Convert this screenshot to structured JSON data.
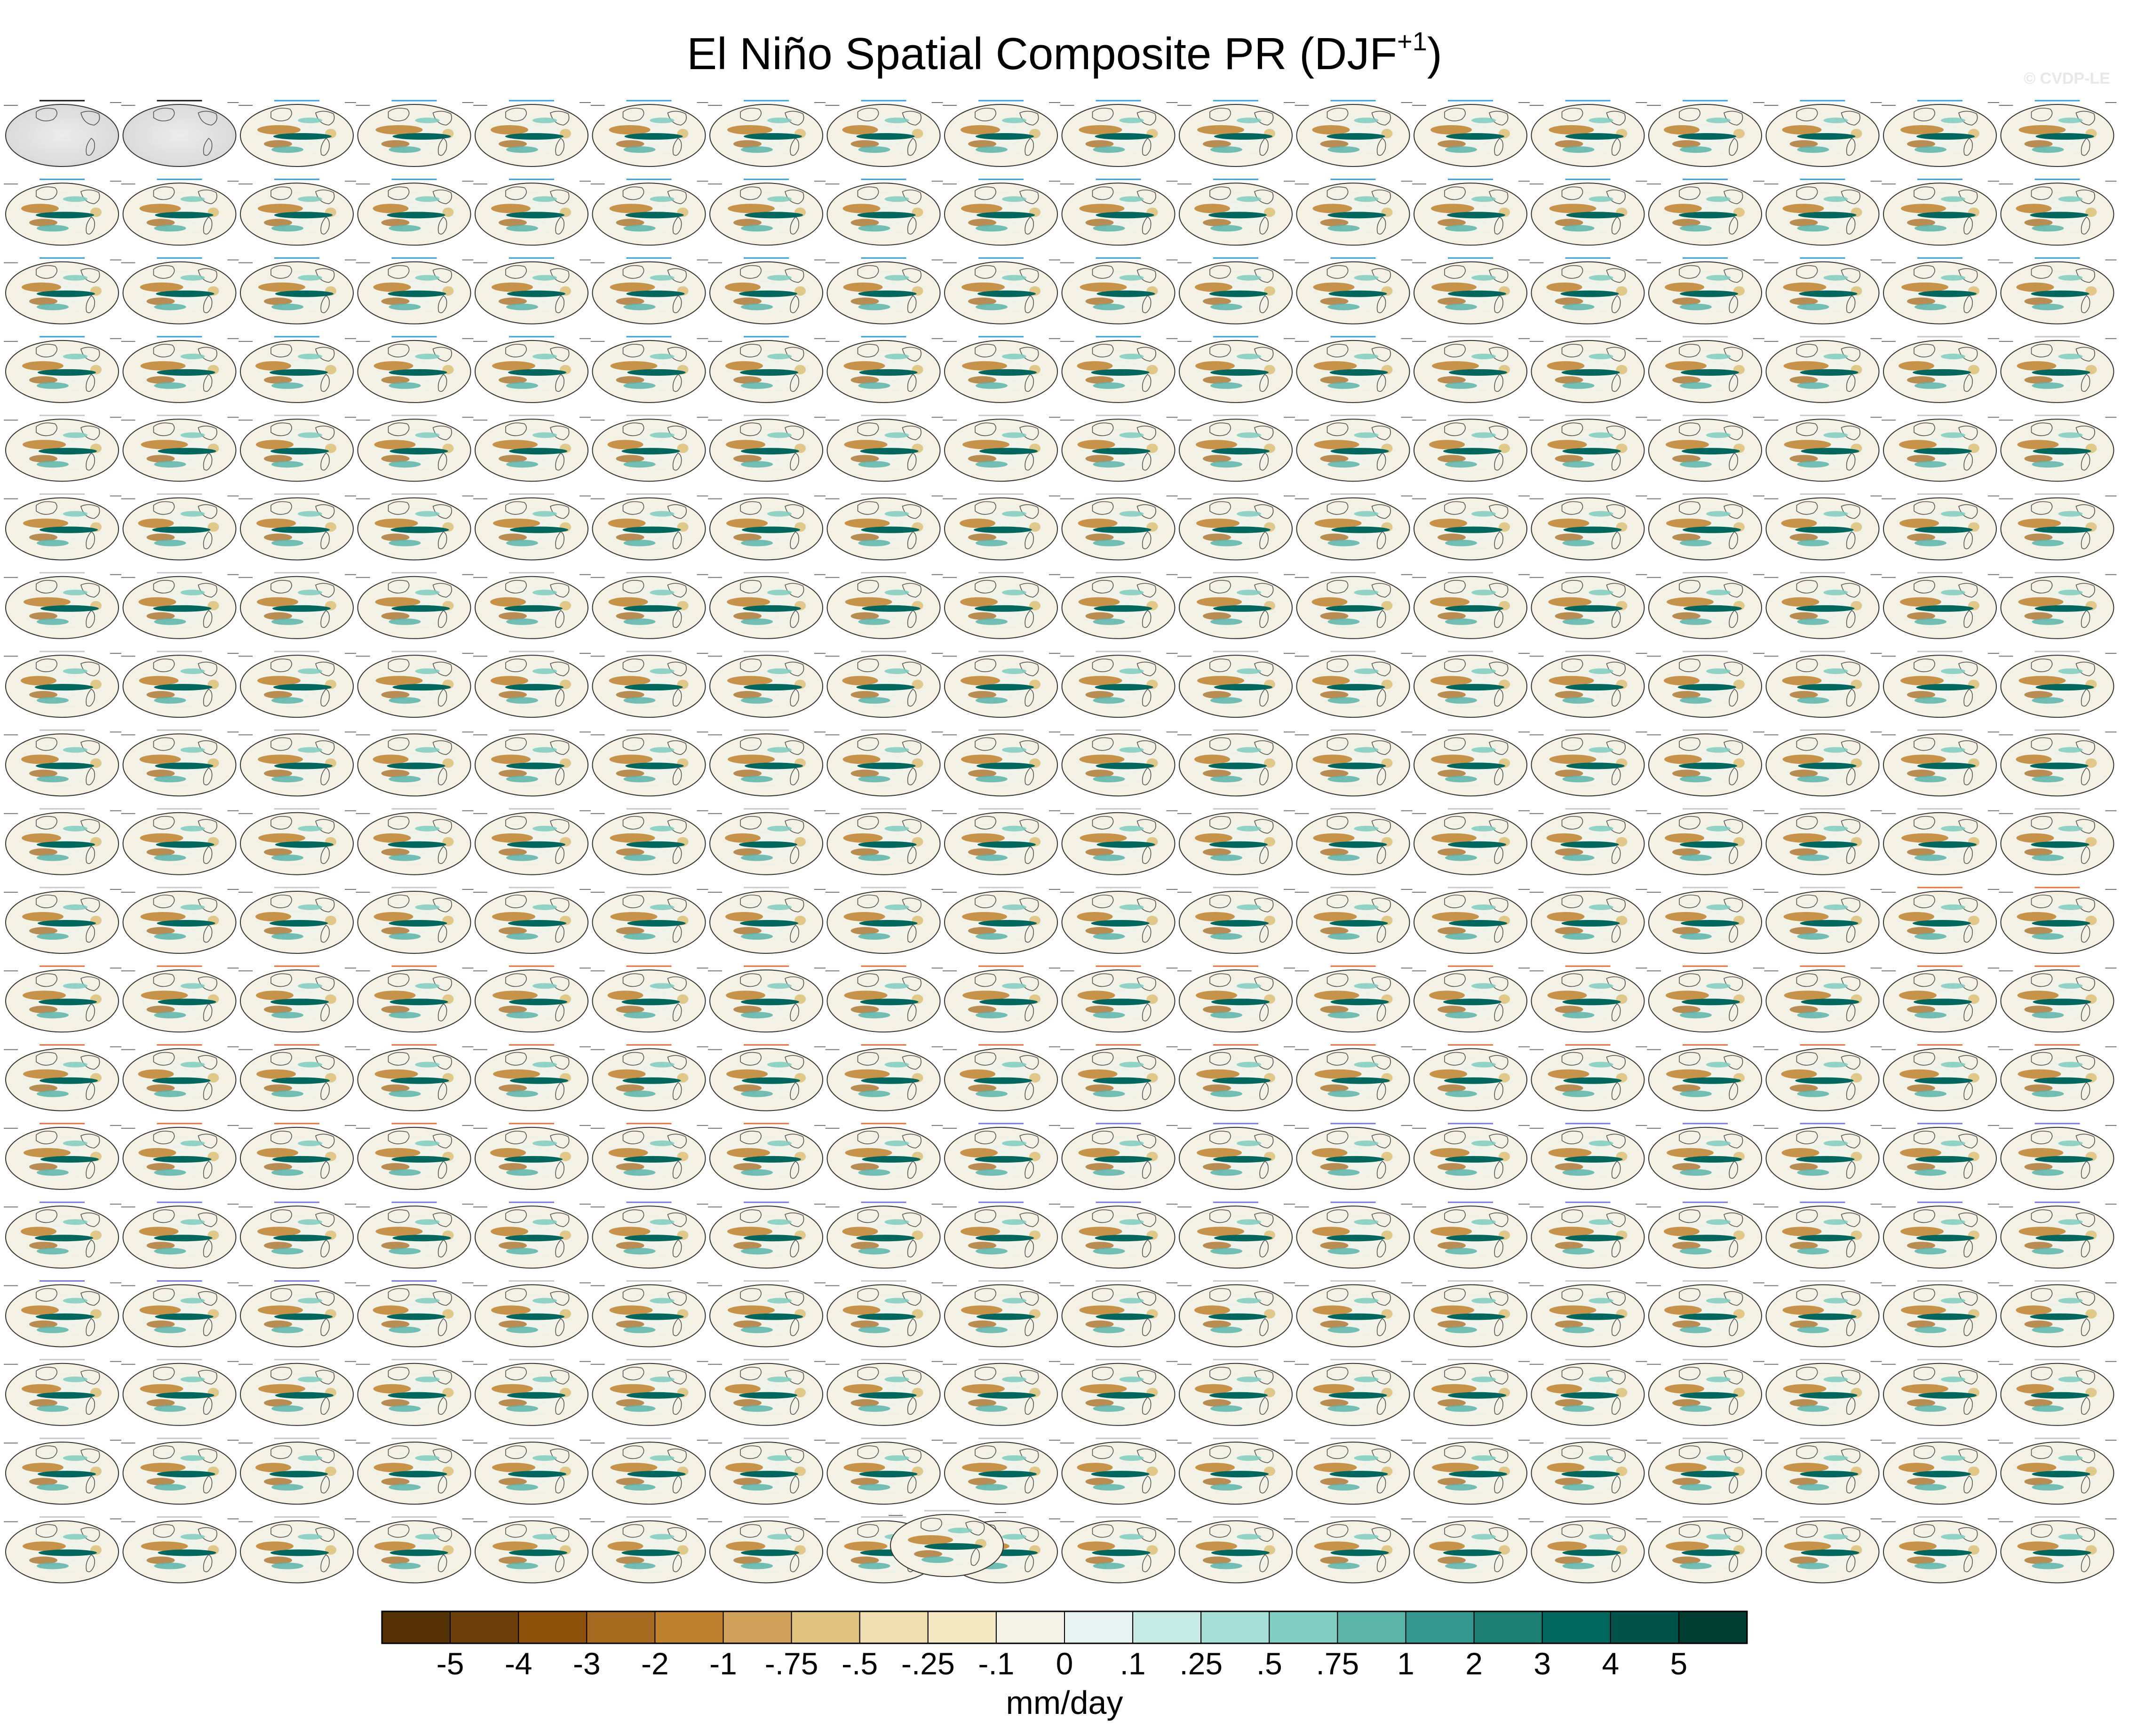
{
  "title": "El Niño Spatial Composite PR (DJF",
  "title_sup": "+1",
  "title_close": ")",
  "watermark": "© CVDP-LE",
  "chart_data": {
    "type": "heatmap",
    "title": "El Niño Spatial Composite PR (DJF+1)",
    "panel_grid": {
      "rows": 19,
      "cols": 18,
      "extra_centered_panels": 1
    },
    "panel_left_label": "1950-1978",
    "panel_right_label": "# El Niño",
    "observations": [
      "GPCC",
      "GPCC_1"
    ],
    "model_groups": [
      {
        "name": "CanESM5",
        "panels": 64,
        "label_color": "#3a9fd8"
      },
      {
        "name": "CESM2-LENS",
        "panels": 100,
        "label_color": "#c8c8c8"
      },
      {
        "name": "CNRM-CM6-1",
        "panels": 30,
        "label_color": "#c8c8c8"
      },
      {
        "name": "GISS-E2-1-G",
        "panels": 46,
        "label_color": "#e87040"
      },
      {
        "name": "IPSL-CM6A-LR",
        "panels": 32,
        "label_color": "#7a7ae0"
      },
      {
        "name": "MIROC6",
        "panels": 50,
        "label_color": "#c8c8c8"
      }
    ],
    "colorbar": {
      "label": "mm/day",
      "tick_labels": [
        "-5",
        "-4",
        "-3",
        "-2",
        "-1",
        "-.75",
        "-.5",
        "-.25",
        "-.1",
        "0",
        ".1",
        ".25",
        ".5",
        ".75",
        "1",
        "2",
        "3",
        "4",
        "5"
      ],
      "colors": [
        "#543005",
        "#6b3e0a",
        "#8c510a",
        "#a56a20",
        "#bf812d",
        "#cfa15a",
        "#dfc27d",
        "#efdcb0",
        "#f6e8c3",
        "#f3f0e6",
        "#e7f3f0",
        "#c7eae5",
        "#a6dfd6",
        "#80cdc1",
        "#5ab4aa",
        "#35978f",
        "#1d7f74",
        "#01665e",
        "#01524a",
        "#003c30"
      ]
    }
  }
}
